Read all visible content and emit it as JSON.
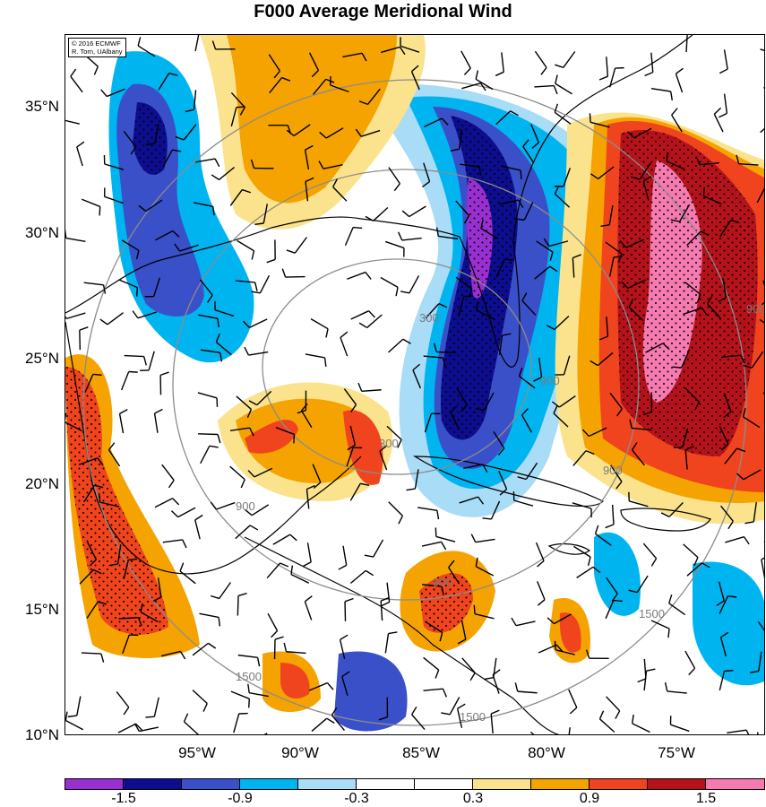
{
  "title": "F000 Average Meridional Wind",
  "credit": {
    "line1": "© 2016 ECMWF",
    "line2": "R. Torn, UAlbany"
  },
  "lat_labels": [
    "35°N",
    "30°N",
    "25°N",
    "20°N",
    "15°N",
    "10°N"
  ],
  "lon_labels": [
    "95°W",
    "90°W",
    "85°W",
    "80°W",
    "75°W"
  ],
  "contour_labels": [
    "300",
    "300",
    "900",
    "900",
    "900",
    "900",
    "1500",
    "1500",
    "1500",
    "900"
  ],
  "colorbar": {
    "colors": [
      "#9a2fd1",
      "#0d0d8f",
      "#3a50c8",
      "#00b4f0",
      "#a8dcf7",
      "#ffffff",
      "#ffffff",
      "#fbe38e",
      "#f5a300",
      "#f0441f",
      "#b5121b",
      "#f57ab0"
    ],
    "labels": [
      "-1.5",
      "-0.9",
      "-0.3",
      "0.3",
      "0.9",
      "1.5"
    ]
  },
  "colors": {
    "purple": "#9a2fd1",
    "dark_blue": "#0d0d8f",
    "med_blue": "#3a50c8",
    "cyan": "#00b4f0",
    "light_blue": "#a8dcf7",
    "yellow": "#fbe38e",
    "orange": "#f5a300",
    "red_orange": "#f0441f",
    "dark_red": "#b5121b",
    "pink": "#f57ab0"
  }
}
